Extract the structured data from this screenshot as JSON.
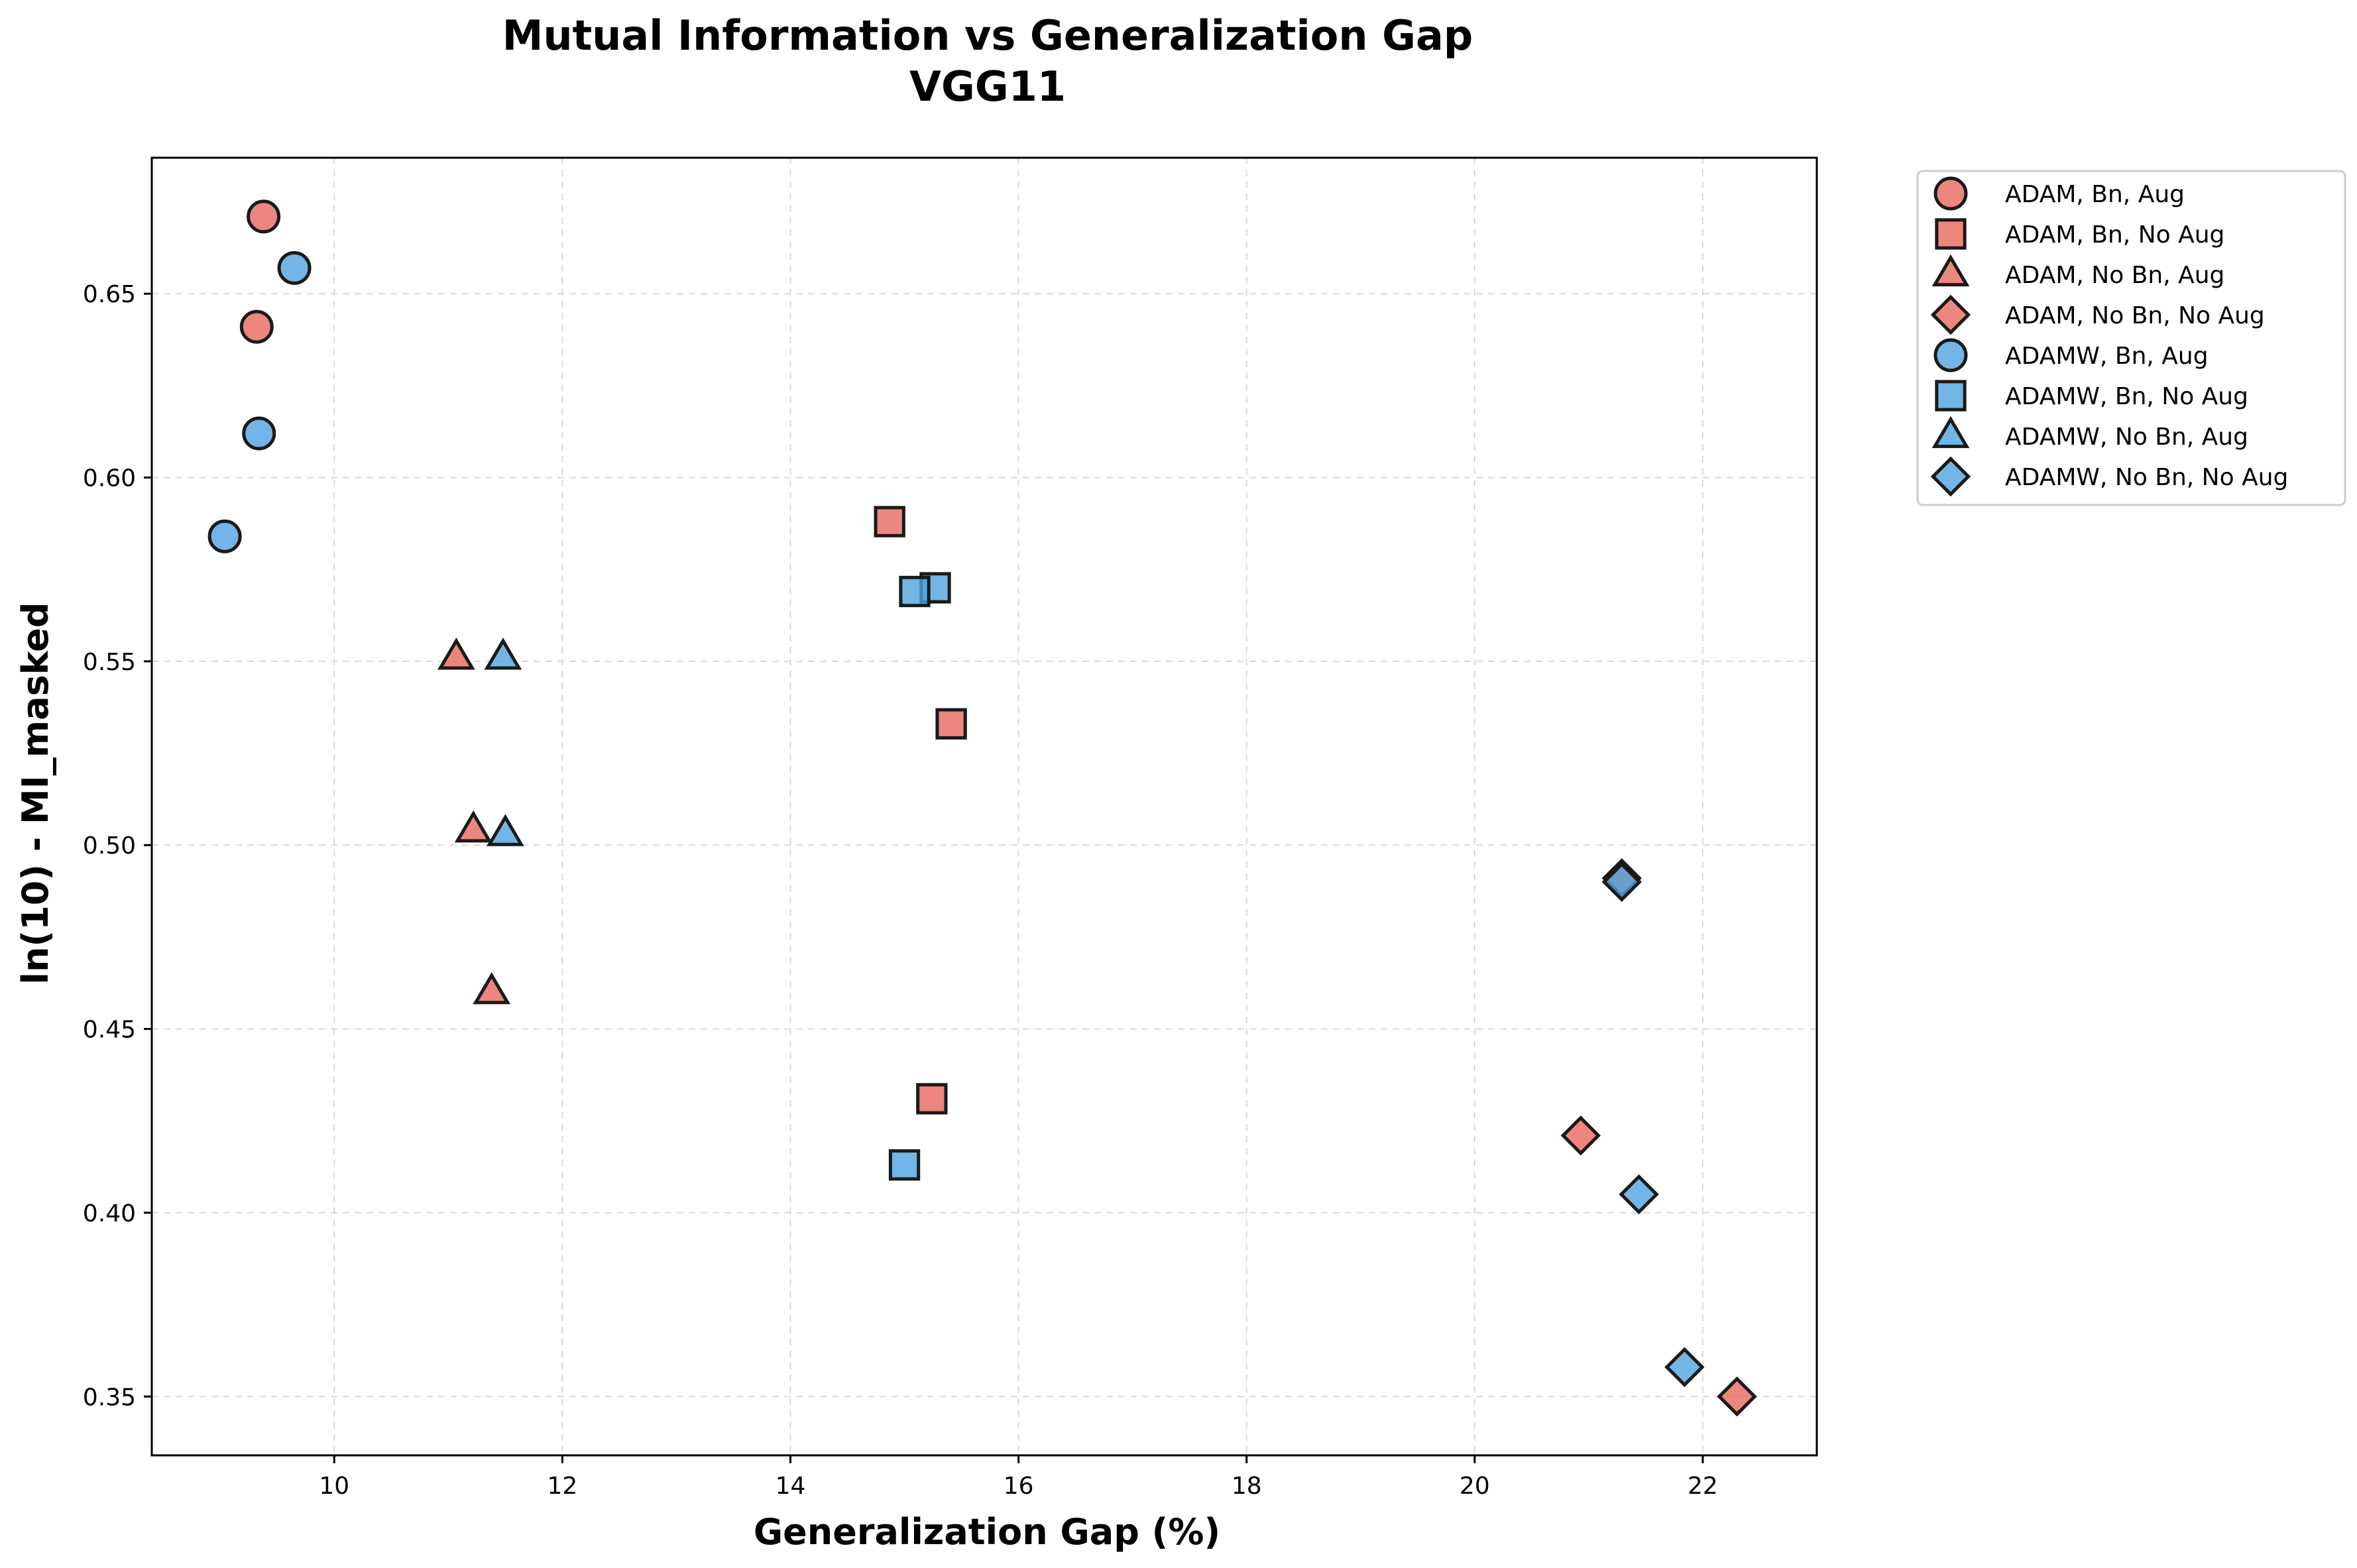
{
  "chart_data": {
    "type": "scatter",
    "title": "Mutual Information vs Generalization Gap",
    "subtitle": "VGG11",
    "xlabel": "Generalization Gap (%)",
    "ylabel": "ln(10) - MI_masked",
    "xlim": [
      8.4,
      23.0
    ],
    "ylim": [
      0.334,
      0.687
    ],
    "xticks": [
      10,
      12,
      14,
      16,
      18,
      20,
      22
    ],
    "yticks": [
      0.35,
      0.4,
      0.45,
      0.5,
      0.55,
      0.6,
      0.65
    ],
    "grid": true,
    "legend": "outside-top-right",
    "series": [
      {
        "name": "ADAM, Bn, Aug",
        "color": "#e8685c",
        "marker": "circle",
        "x": [
          9.38,
          9.32
        ],
        "y": [
          0.671,
          0.641
        ]
      },
      {
        "name": "ADAM, Bn, No Aug",
        "color": "#e8685c",
        "marker": "square",
        "x": [
          14.87,
          15.41,
          15.24
        ],
        "y": [
          0.588,
          0.533,
          0.431
        ]
      },
      {
        "name": "ADAM, No Bn, Aug",
        "color": "#e8685c",
        "marker": "triangle",
        "x": [
          11.07,
          11.22,
          11.38
        ],
        "y": [
          0.551,
          0.504,
          0.46
        ]
      },
      {
        "name": "ADAM, No Bn, No Aug",
        "color": "#e8685c",
        "marker": "diamond",
        "x": [
          21.29,
          20.93,
          22.3
        ],
        "y": [
          0.491,
          0.421,
          0.35
        ]
      },
      {
        "name": "ADAMW, Bn, Aug",
        "color": "#4fa3e0",
        "marker": "circle",
        "x": [
          9.65,
          9.34,
          9.04
        ],
        "y": [
          0.657,
          0.612,
          0.584
        ]
      },
      {
        "name": "ADAMW, Bn, No Aug",
        "color": "#4fa3e0",
        "marker": "square",
        "x": [
          15.27,
          15.09,
          15.0
        ],
        "y": [
          0.57,
          0.569,
          0.413
        ]
      },
      {
        "name": "ADAMW, No Bn, Aug",
        "color": "#4fa3e0",
        "marker": "triangle",
        "x": [
          11.48,
          11.5
        ],
        "y": [
          0.551,
          0.503
        ]
      },
      {
        "name": "ADAMW, No Bn, No Aug",
        "color": "#4fa3e0",
        "marker": "diamond",
        "x": [
          21.29,
          21.44,
          21.84
        ],
        "y": [
          0.49,
          0.405,
          0.358
        ]
      }
    ]
  }
}
